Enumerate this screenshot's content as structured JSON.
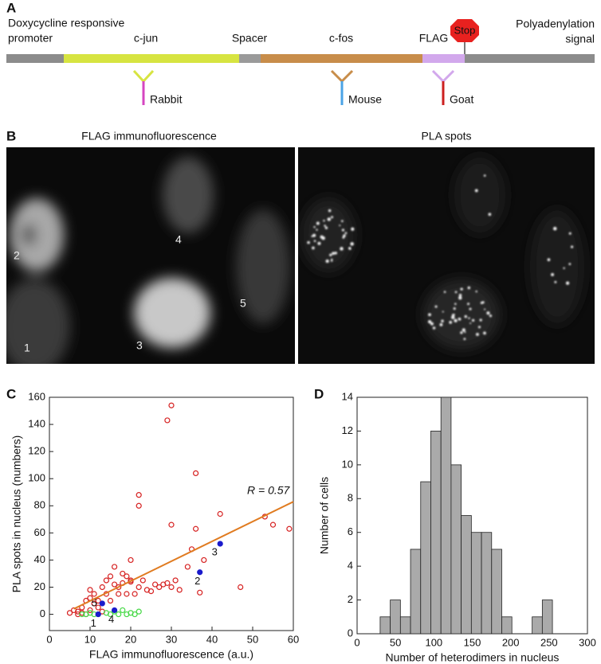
{
  "panel_a": {
    "label": "A",
    "promoter": [
      "Doxycycline responsive",
      "promoter"
    ],
    "cjun": "c-jun",
    "spacer": "Spacer",
    "cfos": "c-fos",
    "flag": "FLAG",
    "stop": "Stop",
    "polya": [
      "Polyadenylation",
      "signal"
    ],
    "antibodies": [
      "Rabbit",
      "Mouse",
      "Goat"
    ]
  },
  "panel_b": {
    "label": "B",
    "titles": [
      "FLAG immunofluorescence",
      "PLA spots"
    ],
    "cell_labels": [
      "1",
      "2",
      "3",
      "4",
      "5"
    ]
  },
  "chart_data": [
    {
      "type": "scatter",
      "panel_label": "C",
      "xlabel": "FLAG immunofluorescence (a.u.)",
      "ylabel": "PLA spots in nucleus (numbers)",
      "annotation": "R = 0.57",
      "xlim": [
        0,
        60
      ],
      "ylim": [
        -12,
        160
      ],
      "xticks": [
        0,
        10,
        20,
        30,
        40,
        50,
        60
      ],
      "yticks": [
        0,
        20,
        40,
        60,
        80,
        100,
        120,
        140,
        160
      ],
      "series": [
        {
          "color": "#d62020",
          "marker": "open",
          "x": [
            5,
            6,
            7,
            7,
            8,
            8,
            9,
            9,
            10,
            10,
            10,
            11,
            11,
            12,
            12,
            13,
            13,
            14,
            14,
            15,
            15,
            16,
            16,
            17,
            17,
            18,
            18,
            19,
            19,
            20,
            20,
            20,
            21,
            22,
            22,
            22,
            23,
            24,
            25,
            26,
            27,
            28,
            29,
            29,
            30,
            30,
            30,
            31,
            32,
            34,
            35,
            36,
            36,
            37,
            38,
            42,
            47,
            53,
            55,
            59
          ],
          "values": [
            1,
            3,
            0,
            2,
            5,
            1,
            10,
            0,
            12,
            3,
            18,
            15,
            8,
            5,
            10,
            20,
            2,
            25,
            15,
            28,
            10,
            22,
            35,
            15,
            20,
            23,
            30,
            28,
            15,
            40,
            25,
            24,
            15,
            88,
            80,
            20,
            25,
            18,
            17,
            22,
            20,
            22,
            143,
            23,
            154,
            66,
            20,
            25,
            18,
            35,
            48,
            63,
            104,
            16,
            40,
            74,
            20,
            72,
            66,
            63
          ]
        },
        {
          "color": "#44d844",
          "marker": "open",
          "x": [
            8,
            9,
            10,
            11,
            12,
            14,
            15,
            16,
            17,
            18,
            19,
            20,
            21,
            22
          ],
          "values": [
            0,
            0,
            1,
            0,
            0,
            1,
            0,
            2,
            0,
            3,
            0,
            1,
            0,
            2
          ]
        },
        {
          "color": "#1a1acc",
          "marker": "filled",
          "labels": [
            "1",
            "2",
            "3",
            "4",
            "5"
          ],
          "x": [
            12,
            37,
            42,
            16,
            13
          ],
          "values": [
            0,
            31,
            52,
            3,
            8
          ]
        },
        {
          "color": "#e07b20",
          "marker": "line",
          "x": [
            6,
            60
          ],
          "values": [
            4,
            83
          ]
        }
      ]
    },
    {
      "type": "histogram",
      "panel_label": "D",
      "xlabel": "Number of heterodimers in nucleus",
      "ylabel": "Number of cells",
      "xlim": [
        0,
        300
      ],
      "ylim": [
        0,
        14
      ],
      "xticks": [
        0,
        50,
        100,
        150,
        200,
        250,
        300
      ],
      "yticks": [
        0,
        2,
        4,
        6,
        8,
        10,
        12,
        14
      ],
      "color": "#aaaaaa",
      "bins": [
        30,
        43.2,
        56.4,
        69.6,
        82.8,
        96,
        109.2,
        122.4,
        135.6,
        148.8,
        162,
        175.2,
        188.4,
        201.6,
        214.8,
        228,
        241.2,
        254.4
      ],
      "counts": [
        1,
        2,
        1,
        5,
        9,
        12,
        14,
        10,
        7,
        6,
        6,
        5,
        1,
        0,
        0,
        1,
        2
      ]
    }
  ]
}
